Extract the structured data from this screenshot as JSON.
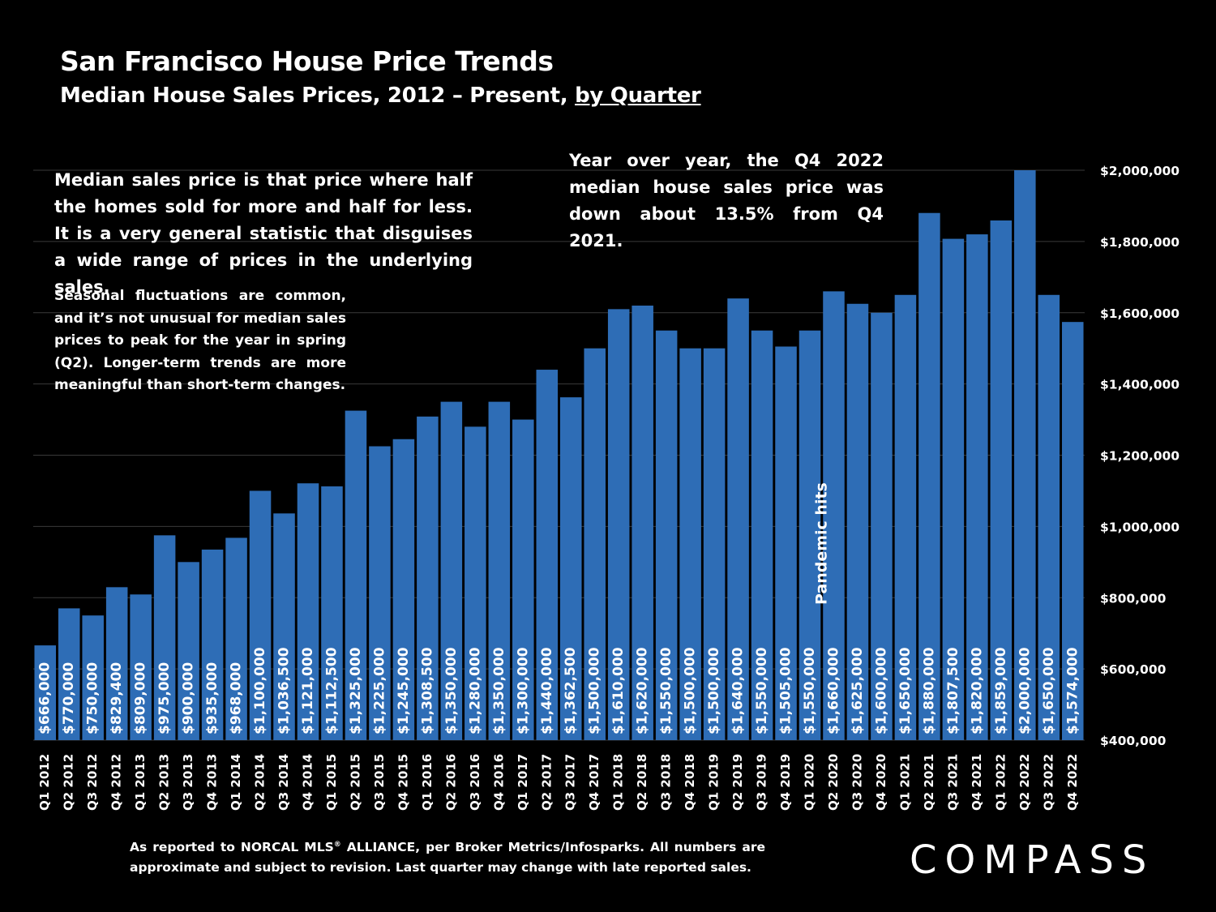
{
  "header": {
    "title": "San Francisco House Price Trends",
    "subtitle_prefix": "Median House Sales Prices, 2012 – Present, ",
    "subtitle_link": "by Quarter"
  },
  "notes": {
    "median_definition": "Median sales price is that price where half the homes sold for more and half for less. It is a very general statistic that disguises a wide range of prices in the underlying sales.",
    "seasonal": "Seasonal fluctuations are common, and it’s not unusual for median sales prices to peak for the year in spring (Q2). Longer-term trends are more meaningful than short-term changes.",
    "yoy": "Year over year, the Q4 2022 median house sales price was down about 13.5% from Q4 2021."
  },
  "footnote": {
    "text_a": "As reported to NORCAL MLS",
    "sup": "®",
    "text_b": " ALLIANCE, per Broker Metrics/Infosparks. All numbers are approximate and subject to revision. Last quarter may change with late reported sales."
  },
  "logo": {
    "text": "COMPASS"
  },
  "colors": {
    "bar": "#2E6DB6",
    "background": "#000000",
    "text": "#FFFFFF",
    "grid": "#3a3a3a"
  },
  "chart_data": {
    "type": "bar",
    "title": "San Francisco House Price Trends",
    "subtitle": "Median House Sales Prices, 2012 – Present, by Quarter",
    "ylim": [
      400000,
      2000000
    ],
    "y_axis_position": "right",
    "grid": true,
    "yticks": [
      400000,
      600000,
      800000,
      1000000,
      1200000,
      1400000,
      1600000,
      1800000,
      2000000
    ],
    "ytick_labels": [
      "$400,000",
      "$600,000",
      "$800,000",
      "$1,000,000",
      "$1,200,000",
      "$1,400,000",
      "$1,600,000",
      "$1,800,000",
      "$2,000,000"
    ],
    "categories": [
      "Q1 2012",
      "Q2 2012",
      "Q3 2012",
      "Q4 2012",
      "Q1 2013",
      "Q2 2013",
      "Q3 2013",
      "Q4 2013",
      "Q1 2014",
      "Q2 2014",
      "Q3 2014",
      "Q4 2014",
      "Q1 2015",
      "Q2 2015",
      "Q3 2015",
      "Q4 2015",
      "Q1 2016",
      "Q2 2016",
      "Q3 2016",
      "Q4 2016",
      "Q1 2017",
      "Q2 2017",
      "Q3 2017",
      "Q4 2017",
      "Q1 2018",
      "Q2 2018",
      "Q3 2018",
      "Q4 2018",
      "Q1 2019",
      "Q2 2019",
      "Q3 2019",
      "Q4 2019",
      "Q1 2020",
      "Q2 2020",
      "Q3 2020",
      "Q4 2020",
      "Q1 2021",
      "Q2 2021",
      "Q3 2021",
      "Q4 2021",
      "Q1 2022",
      "Q2 2022",
      "Q3 2022",
      "Q4 2022"
    ],
    "values": [
      666000,
      770000,
      750000,
      829400,
      809000,
      975000,
      900000,
      935000,
      968000,
      1100000,
      1036500,
      1121000,
      1112500,
      1325000,
      1225000,
      1245000,
      1308500,
      1350000,
      1280000,
      1350000,
      1300000,
      1440000,
      1362500,
      1500000,
      1610000,
      1620000,
      1550000,
      1500000,
      1500000,
      1640000,
      1550000,
      1505000,
      1550000,
      1660000,
      1625000,
      1600000,
      1650000,
      1880000,
      1807500,
      1820000,
      1859000,
      2000000,
      1650000,
      1574000
    ],
    "data_labels": [
      "$666,000",
      "$770,000",
      "$750,000",
      "$829,400",
      "$809,000",
      "$975,000",
      "$900,000",
      "$935,000",
      "$968,000",
      "$1,100,000",
      "$1,036,500",
      "$1,121,000",
      "$1,112,500",
      "$1,325,000",
      "$1,225,000",
      "$1,245,000",
      "$1,308,500",
      "$1,350,000",
      "$1,280,000",
      "$1,350,000",
      "$1,300,000",
      "$1,440,000",
      "$1,362,500",
      "$1,500,000",
      "$1,610,000",
      "$1,620,000",
      "$1,550,000",
      "$1,500,000",
      "$1,500,000",
      "$1,640,000",
      "$1,550,000",
      "$1,505,000",
      "$1,550,000",
      "$1,660,000",
      "$1,625,000",
      "$1,600,000",
      "$1,650,000",
      "$1,880,000",
      "$1,807,500",
      "$1,820,000",
      "$1,859,000",
      "$2,000,000",
      "$1,650,000",
      "$1,574,000"
    ],
    "annotations": [
      {
        "text": "Pandemic hits",
        "at_category": "Q1 2020"
      }
    ]
  }
}
